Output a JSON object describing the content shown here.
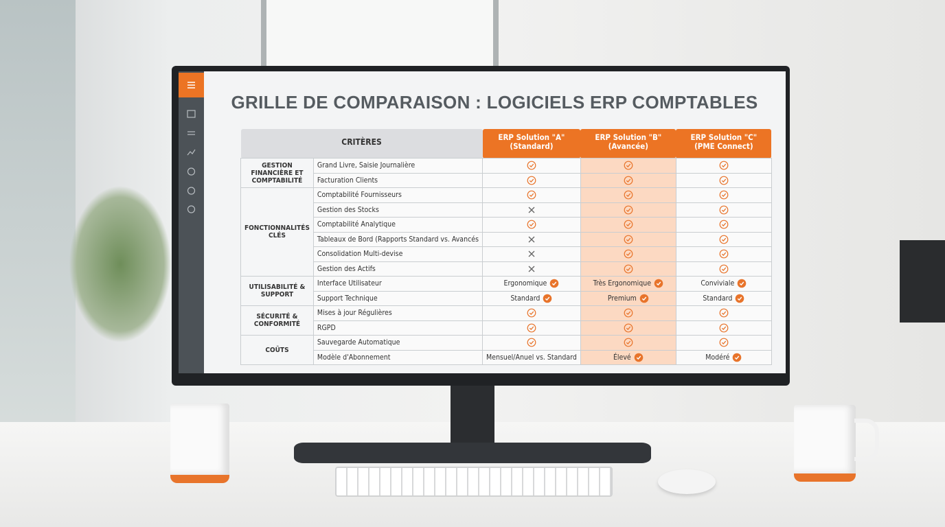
{
  "title": "GRILLE DE COMPARAISON : LOGICIELS ERP COMPTABLES",
  "table": {
    "header": {
      "criteria": "CRITÈRES",
      "solutions": [
        {
          "name": "ERP Solution \"A\"",
          "sub": "(Standard)"
        },
        {
          "name": "ERP Solution \"B\"",
          "sub": "(Avancée)"
        },
        {
          "name": "ERP Solution \"C\"",
          "sub": "(PME Connect)"
        }
      ]
    },
    "highlight_column": 1,
    "groups": [
      {
        "label": "GESTION FINANCIÈRE ET COMPTABILITÉ",
        "rows": [
          {
            "criterion": "Grand Livre, Saisie Journalière",
            "cells": [
              true,
              true,
              true
            ]
          },
          {
            "criterion": "Facturation Clients",
            "cells": [
              true,
              true,
              true
            ]
          }
        ]
      },
      {
        "label": "FONCTIONNALITÉS CLÉS",
        "rows": [
          {
            "criterion": "Comptabilité Fournisseurs",
            "cells": [
              true,
              true,
              true
            ]
          },
          {
            "criterion": "Gestion des Stocks",
            "cells": [
              false,
              true,
              true
            ]
          },
          {
            "criterion": "Comptabilité Analytique",
            "cells": [
              true,
              true,
              true
            ]
          },
          {
            "criterion": "Tableaux de Bord (Rapports Standard vs. Avancés",
            "cells": [
              false,
              true,
              true
            ]
          },
          {
            "criterion": "Consolidation Multi-devise",
            "cells": [
              false,
              true,
              true
            ]
          },
          {
            "criterion": "Gestion des Actifs",
            "cells": [
              false,
              true,
              true
            ]
          }
        ]
      },
      {
        "label": "UTILISABILITÉ & SUPPORT",
        "rows": [
          {
            "criterion": "Interface Utilisateur",
            "cells": [
              {
                "text": "Ergonomique",
                "check": true
              },
              {
                "text": "Très Ergonomique",
                "check": true
              },
              {
                "text": "Conviviale",
                "check": true
              }
            ]
          },
          {
            "criterion": "Support Technique",
            "cells": [
              {
                "text": "Standard",
                "check": true
              },
              {
                "text": "Premium",
                "check": true
              },
              {
                "text": "Standard",
                "check": true
              }
            ]
          }
        ]
      },
      {
        "label": "SÉCURITÉ & CONFORMITÉ",
        "rows": [
          {
            "criterion": "Mises à jour Régulières",
            "cells": [
              true,
              true,
              true
            ]
          },
          {
            "criterion": "RGPD",
            "cells": [
              true,
              true,
              true
            ]
          }
        ]
      },
      {
        "label": "COÛTS",
        "rows": [
          {
            "criterion": "Sauvegarde Automatique",
            "cells": [
              true,
              true,
              true
            ]
          },
          {
            "criterion": "Modèle d'Abonnement",
            "cells": [
              {
                "text": "Mensuel/Anuel vs. Standard",
                "check": false
              },
              {
                "text": "Élevé",
                "check": true
              },
              {
                "text": "Modéré",
                "check": true
              }
            ]
          }
        ]
      }
    ]
  }
}
